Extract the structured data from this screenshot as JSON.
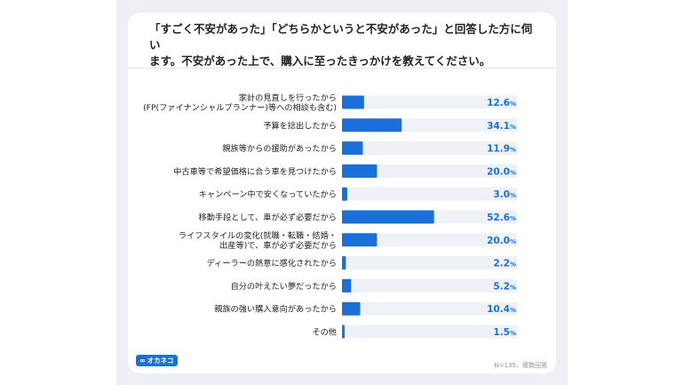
{
  "header": {
    "title_line1": "「すごく不安があった」「どちらかというと不安があった」と回答した方に伺い",
    "title_line2": "ます。不安があった上で、購入に至ったきっかけを教えてください。"
  },
  "chart_data": {
    "type": "bar",
    "orientation": "horizontal",
    "title": "「すごく不安があった」「どちらかというと不安があった」と回答した方に伺います。不安があった上で、購入に至ったきっかけを教えてください。",
    "categories": [
      [
        "家計の見直しを行ったから",
        "(FP(ファイナンシャルプランナー)等への相談も含む)"
      ],
      [
        "予算を捻出したから"
      ],
      [
        "親族等からの援助があったから"
      ],
      [
        "中古車等で希望価格に合う車を見つけたから"
      ],
      [
        "キャンペーン中で安くなっていたから"
      ],
      [
        "移動手段として、車が必ず必要だから"
      ],
      [
        "ライフスタイルの変化(就職・転職・結婚・",
        "出産等)で、車が必ず必要だから"
      ],
      [
        "ディーラーの熱意に感化されたから"
      ],
      [
        "自分の叶えたい夢だったから"
      ],
      [
        "親族の強い購入意向があったから"
      ],
      [
        "その他"
      ]
    ],
    "values": [
      12.6,
      34.1,
      11.9,
      20.0,
      3.0,
      52.6,
      20.0,
      2.2,
      5.2,
      10.4,
      1.5
    ],
    "value_labels": [
      "12.6",
      "34.1",
      "11.9",
      "20.0",
      "3.0",
      "52.6",
      "20.0",
      "2.2",
      "5.2",
      "10.4",
      "1.5"
    ],
    "unit": "%",
    "xlim": [
      0,
      100
    ],
    "colors": {
      "bar": "#1a6fd9",
      "track": "#eef1f5",
      "value_text": "#1a6fd9"
    }
  },
  "footer": {
    "logo_text": "オカネコ",
    "logo_icon": "infinity-icon",
    "note": "N=135、複数回答"
  }
}
